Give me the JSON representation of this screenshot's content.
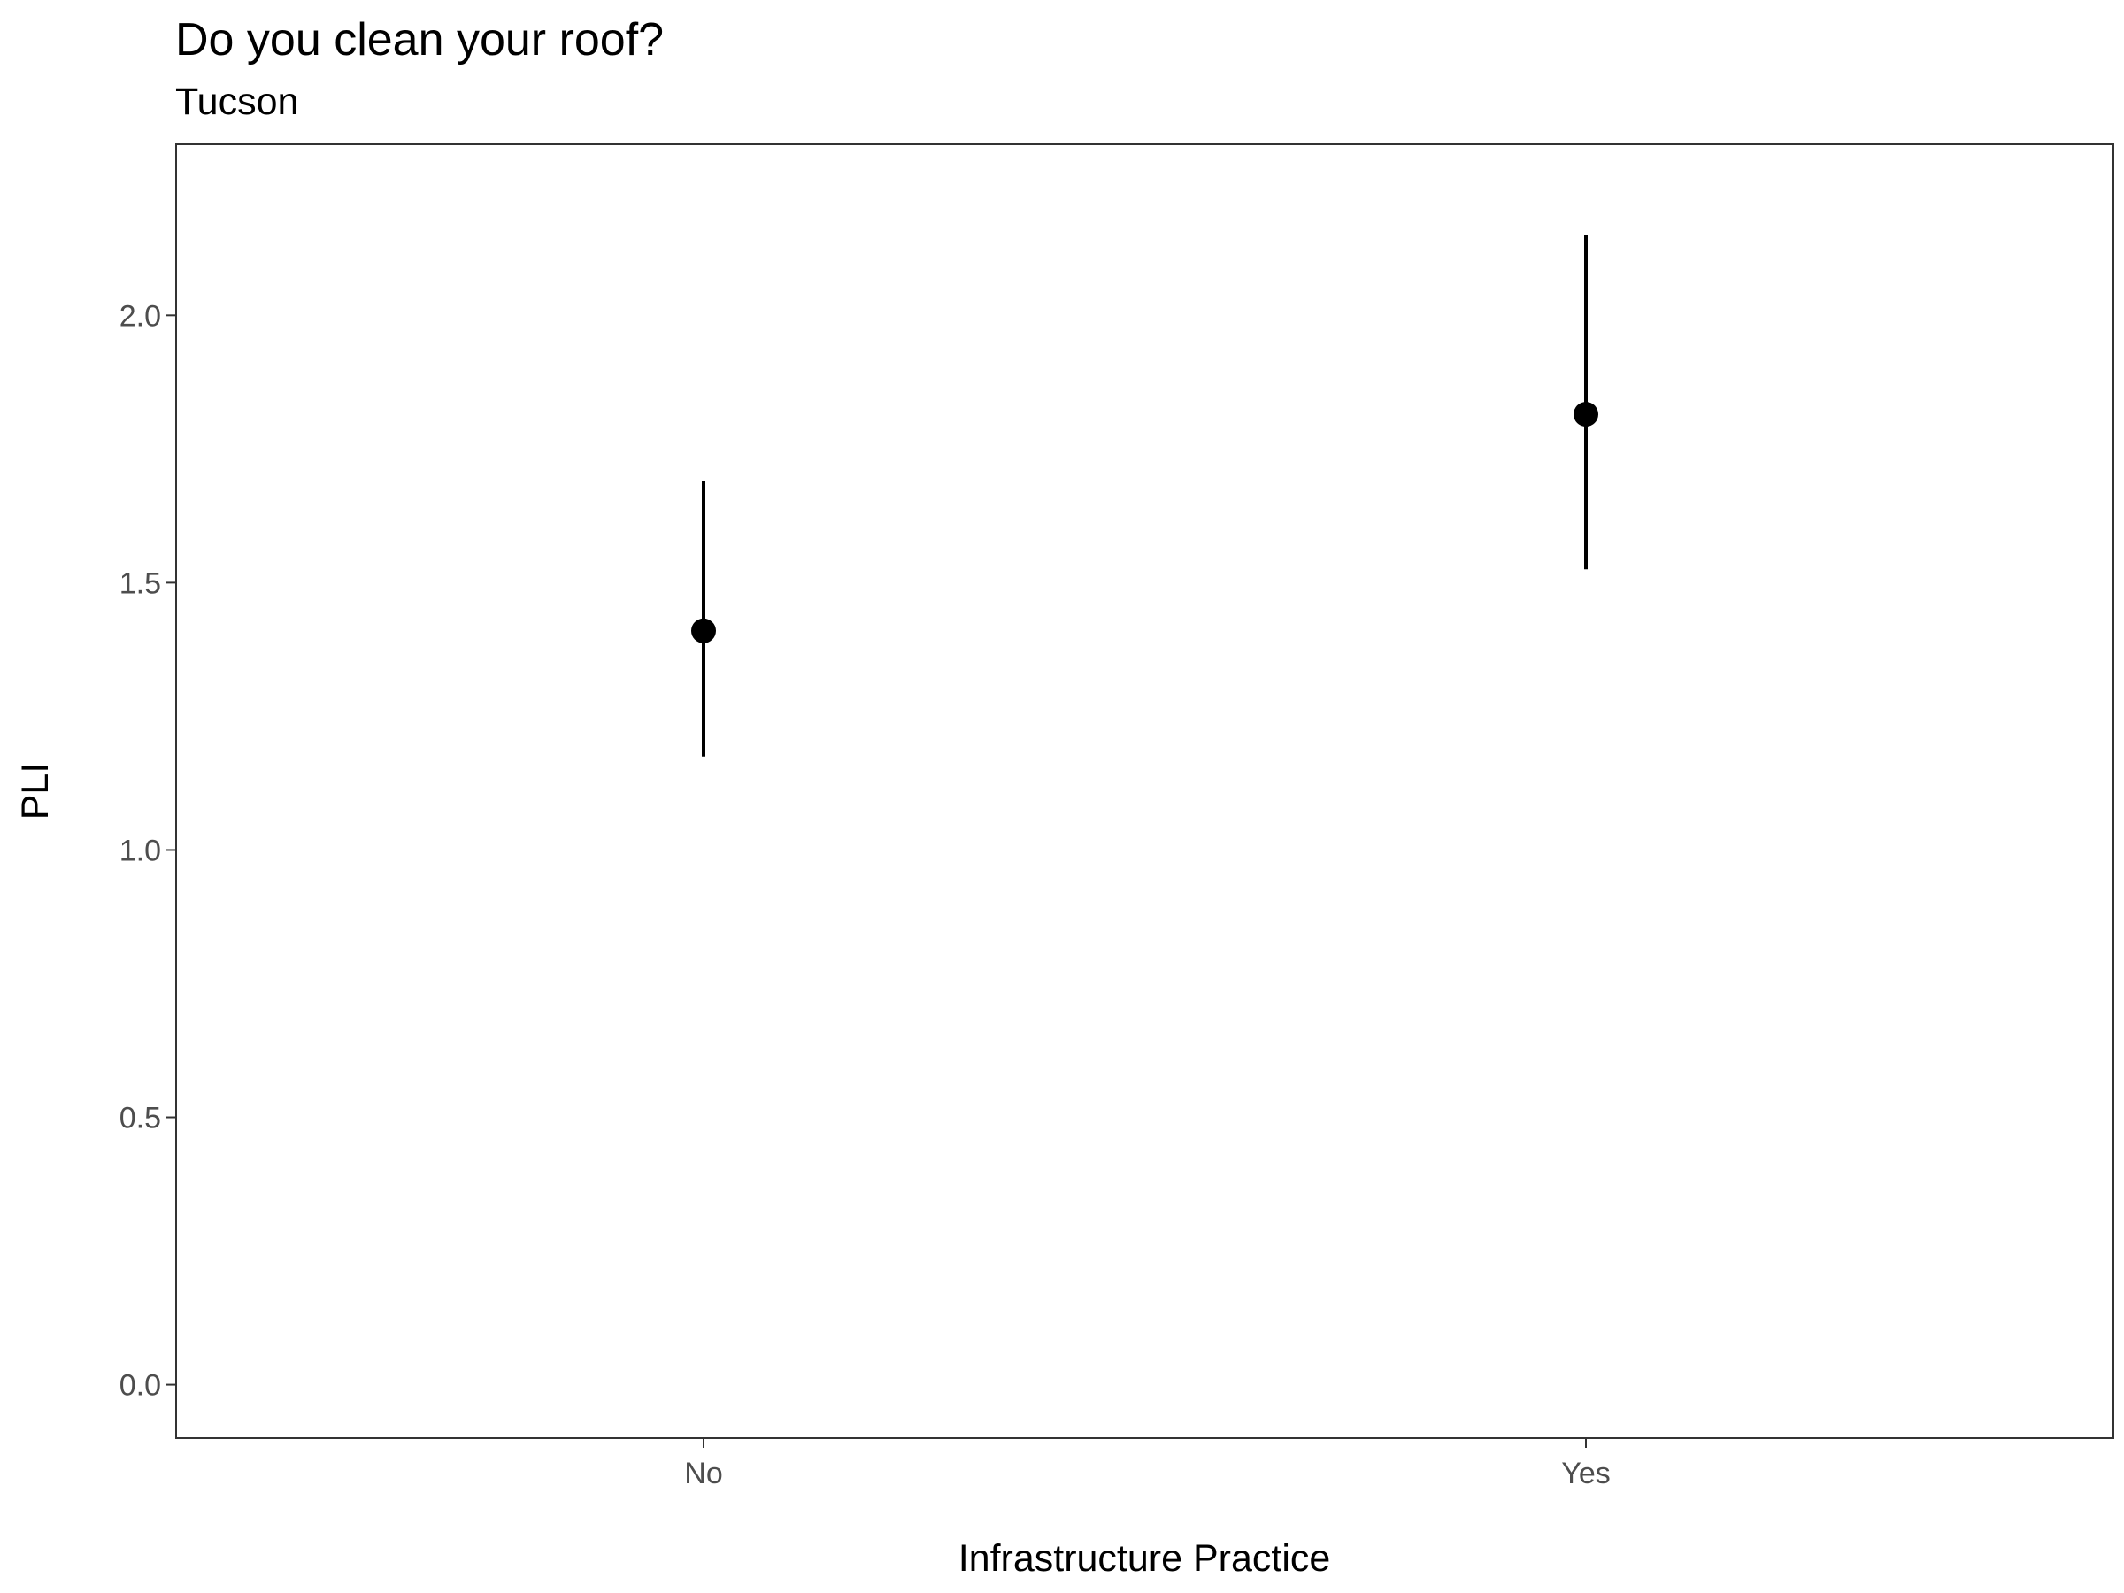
{
  "chart_data": {
    "type": "scatter",
    "title": "Do you clean your roof?",
    "subtitle": "Tucson",
    "xlabel": "Infrastructure Practice",
    "ylabel": "PLI",
    "categories": [
      "No",
      "Yes"
    ],
    "y_ticks": [
      "0.0",
      "0.5",
      "1.0",
      "1.5",
      "2.0"
    ],
    "y_tick_values": [
      0.0,
      0.5,
      1.0,
      1.5,
      2.0
    ],
    "ylim": [
      -0.1,
      2.32
    ],
    "grid": false,
    "legend": "none",
    "series": [
      {
        "values": [
          1.41,
          1.815
        ],
        "lower": [
          1.175,
          1.525
        ],
        "upper": [
          1.69,
          2.15
        ]
      }
    ],
    "colors": {
      "point": "#000000",
      "errorbar": "#000000",
      "panel_border": "#333333",
      "tick_label": "#4d4d4d"
    }
  }
}
